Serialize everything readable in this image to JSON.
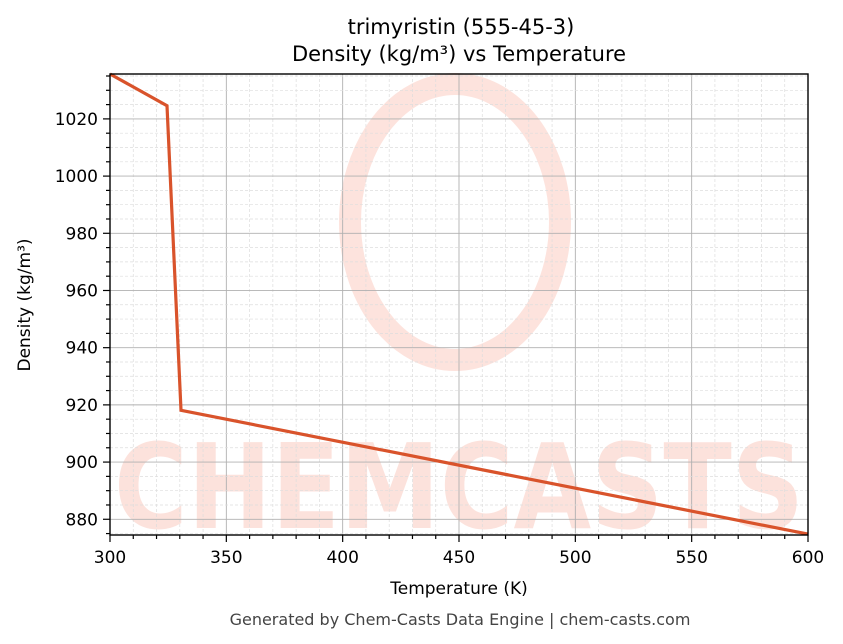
{
  "title_line1": "trimyristin (555-45-3)",
  "title_line2": "Density (kg/m³) vs Temperature",
  "footer": "Generated by Chem-Casts Data Engine | chem-casts.com",
  "watermark": "CHEMCASTS",
  "colors": {
    "line": "#d9532b",
    "watermark": "#fbd0c6",
    "grid_major": "#b0b0b0",
    "grid_minor": "#dddddd"
  },
  "chart_data": {
    "type": "line",
    "title": "trimyristin (555-45-3) Density (kg/m³) vs Temperature",
    "xlabel": "Temperature (K)",
    "ylabel": "Density (kg/m³)",
    "xlim": [
      300,
      600
    ],
    "ylim": [
      874.5,
      1035.7
    ],
    "xticks": [
      300,
      350,
      400,
      450,
      500,
      550,
      600
    ],
    "yticks": [
      880,
      900,
      920,
      940,
      960,
      980,
      1000,
      1020
    ],
    "grid": true,
    "legend": null,
    "series": [
      {
        "name": "Density",
        "x": [
          300,
          324.5,
          330.5,
          600
        ],
        "y": [
          1035.7,
          1024.6,
          918.1,
          874.8
        ]
      }
    ]
  }
}
